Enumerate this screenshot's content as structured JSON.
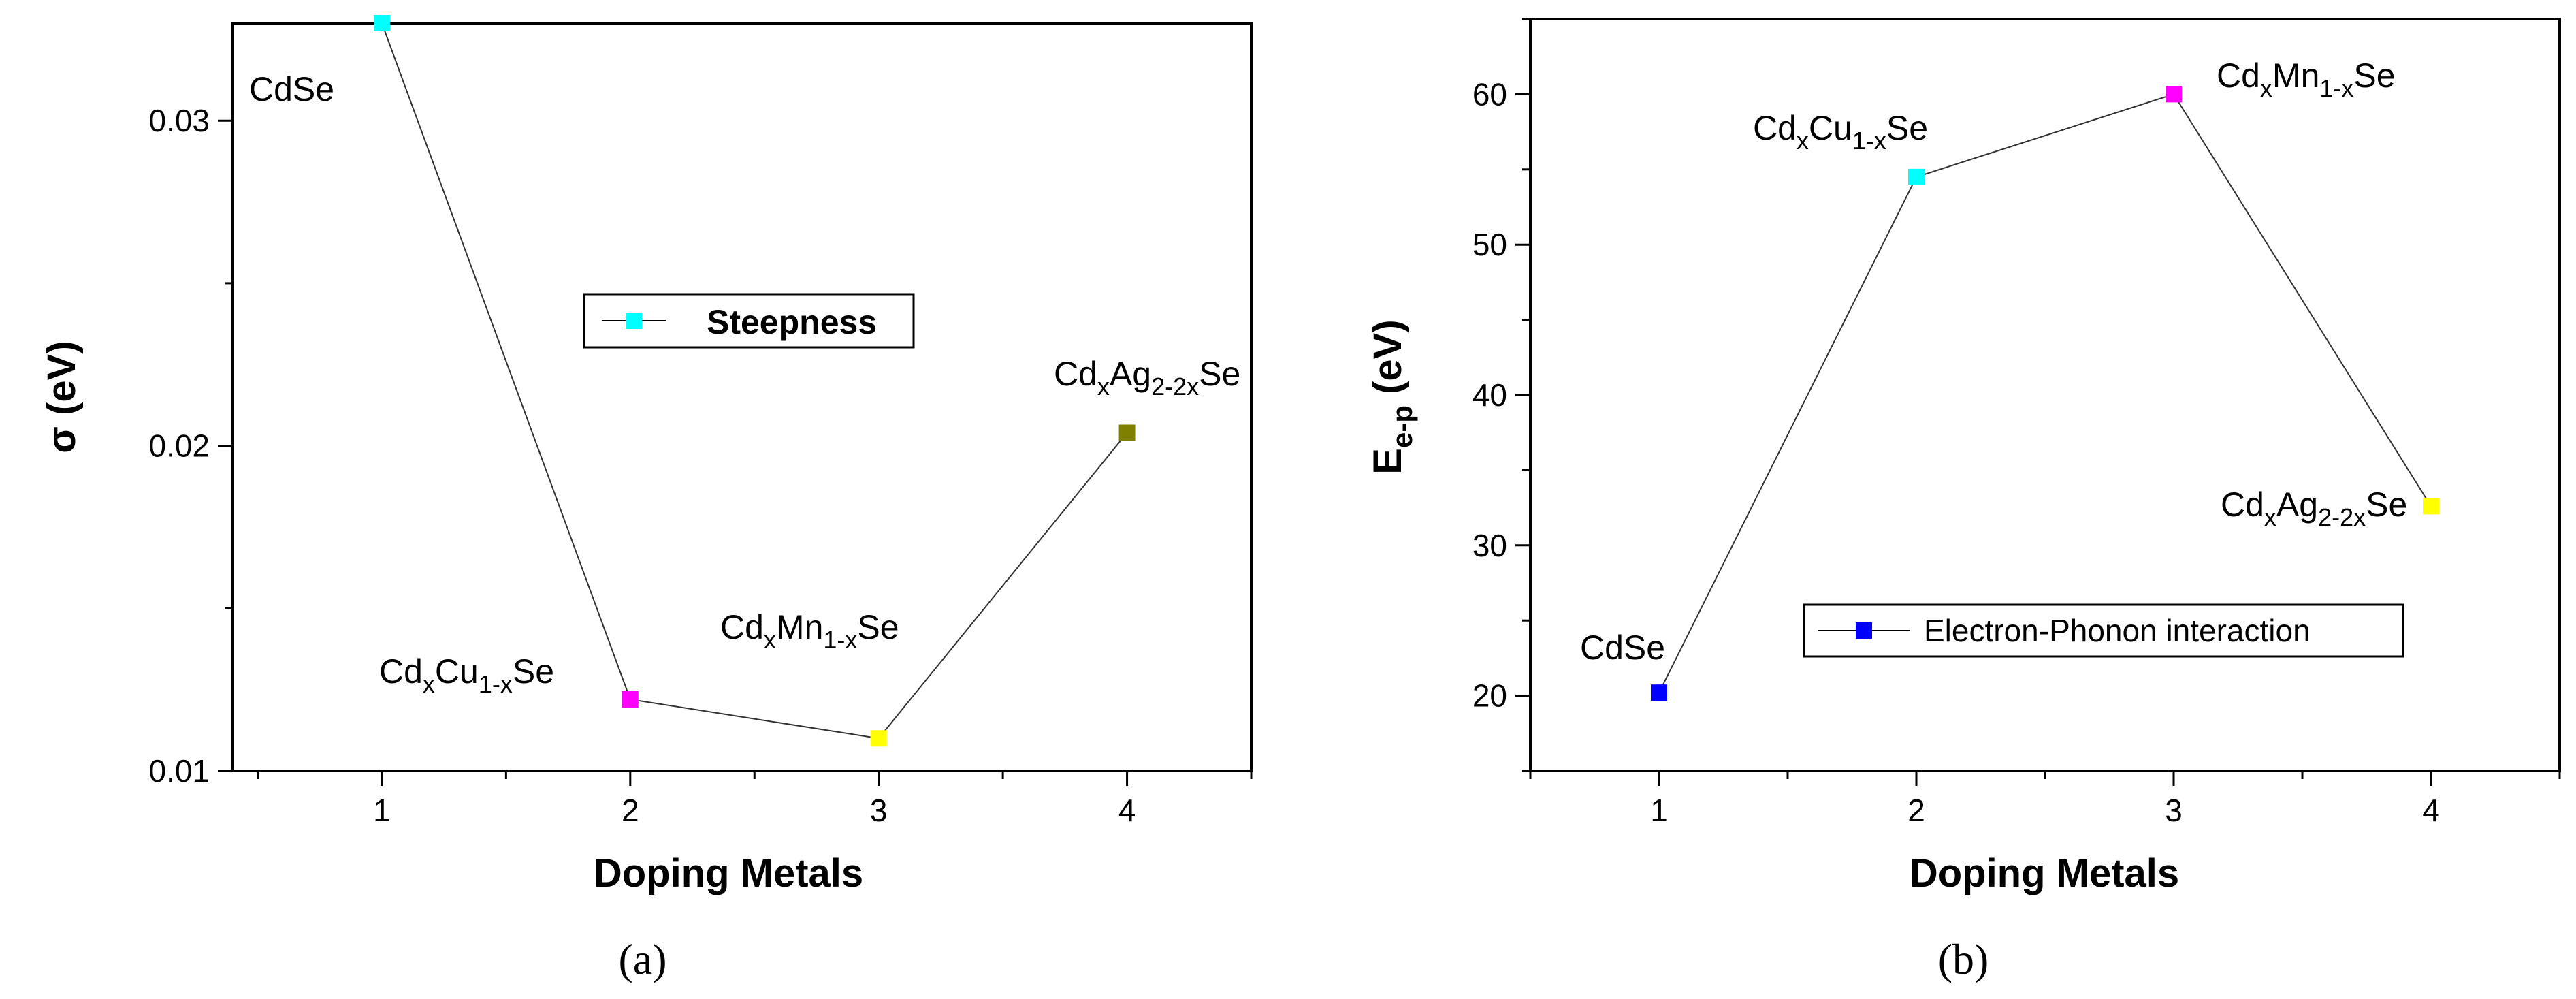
{
  "chart_data": [
    {
      "panel": "a",
      "type": "line",
      "xlabel": "Doping Metals",
      "ylabel": "σ (eV)",
      "xlim": [
        0.4,
        4.5
      ],
      "ylim": [
        0.01,
        0.033
      ],
      "xticks": [
        "1",
        "2",
        "3",
        "4"
      ],
      "yticks": [
        "0.01",
        "0.02",
        "0.03"
      ],
      "legend": {
        "label": "Steepness",
        "position": "center",
        "marker_color": "#00ffff"
      },
      "points": [
        {
          "x": 1,
          "y": 0.033,
          "label": "CdSe",
          "color": "#00ffff"
        },
        {
          "x": 2,
          "y": 0.0122,
          "label": "CdxCu1-xSe",
          "color": "#ff00ff"
        },
        {
          "x": 3,
          "y": 0.011,
          "label": "CdxMn1-xSe",
          "color": "#ffff00"
        },
        {
          "x": 4,
          "y": 0.0204,
          "label": "CdxAg2-2xSe",
          "color": "#808000"
        }
      ],
      "caption": "(a)"
    },
    {
      "panel": "b",
      "type": "line",
      "xlabel": "Doping Metals",
      "ylabel": "Ee-p (eV)",
      "xlim": [
        0.5,
        4.5
      ],
      "ylim": [
        15,
        65
      ],
      "xticks": [
        "1",
        "2",
        "3",
        "4"
      ],
      "yticks": [
        "20",
        "30",
        "40",
        "50",
        "60"
      ],
      "legend": {
        "label": "Electron-Phonon interaction",
        "position": "center-right",
        "marker_color": "#0000ff"
      },
      "points": [
        {
          "x": 1,
          "y": 20.2,
          "label": "CdSe",
          "color": "#0000ff"
        },
        {
          "x": 2,
          "y": 54.5,
          "label": "CdxCu1-xSe",
          "color": "#00ffff"
        },
        {
          "x": 3,
          "y": 60,
          "label": "CdxMn1-xSe",
          "color": "#ff00ff"
        },
        {
          "x": 4,
          "y": 32.6,
          "label": "CdxAg2-2xSe",
          "color": "#ffff00"
        }
      ],
      "caption": "(b)"
    }
  ]
}
